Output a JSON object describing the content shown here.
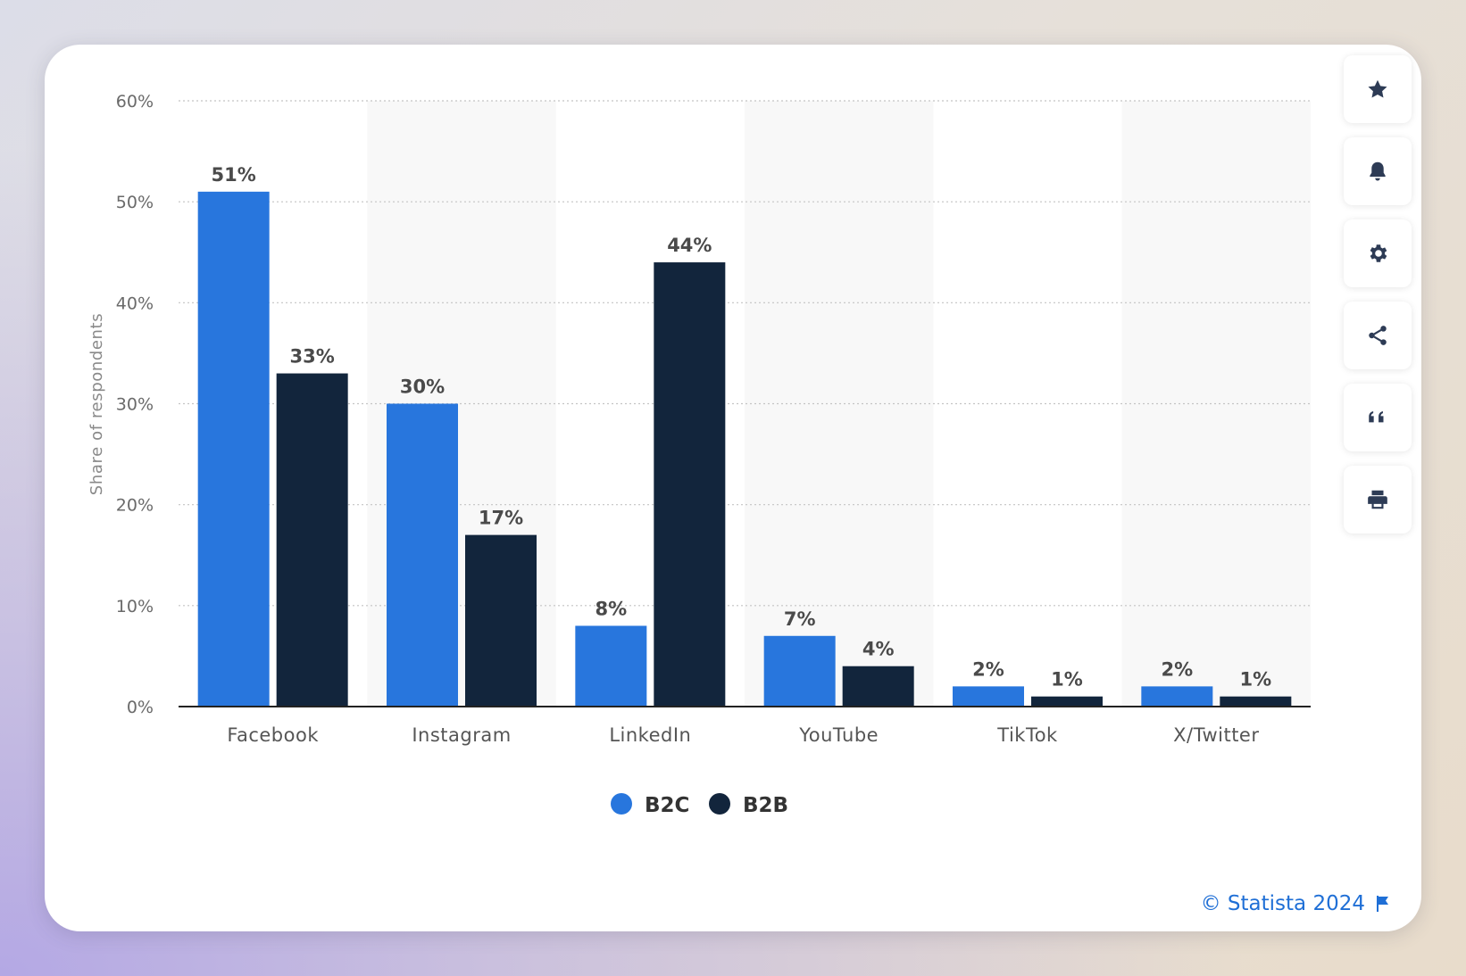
{
  "chart_data": {
    "type": "bar",
    "categories": [
      "Facebook",
      "Instagram",
      "LinkedIn",
      "YouTube",
      "TikTok",
      "X/Twitter"
    ],
    "series": [
      {
        "name": "B2C",
        "color": "#2876dd",
        "values": [
          51,
          30,
          8,
          7,
          2,
          2
        ],
        "labels": [
          "51%",
          "30%",
          "8%",
          "7%",
          "2%",
          "2%"
        ]
      },
      {
        "name": "B2B",
        "color": "#12253c",
        "values": [
          33,
          17,
          44,
          4,
          1,
          1
        ],
        "labels": [
          "33%",
          "17%",
          "44%",
          "4%",
          "1%",
          "1%"
        ]
      }
    ],
    "ylabel": "Share of respondents",
    "ylim": [
      0,
      60
    ],
    "yticks": [
      0,
      10,
      20,
      30,
      40,
      50,
      60
    ],
    "ytick_labels": [
      "0%",
      "10%",
      "20%",
      "30%",
      "40%",
      "50%",
      "60%"
    ],
    "grid": true,
    "legend": "bottom-center"
  },
  "toolbar": [
    {
      "icon": "star-icon",
      "name": "favorite-button"
    },
    {
      "icon": "bell-icon",
      "name": "notification-button"
    },
    {
      "icon": "gear-icon",
      "name": "settings-button"
    },
    {
      "icon": "share-icon",
      "name": "share-button"
    },
    {
      "icon": "quote-icon",
      "name": "cite-button"
    },
    {
      "icon": "printer-icon",
      "name": "print-button"
    }
  ],
  "credit": {
    "text": "© Statista 2024",
    "icon": "flag-icon"
  }
}
